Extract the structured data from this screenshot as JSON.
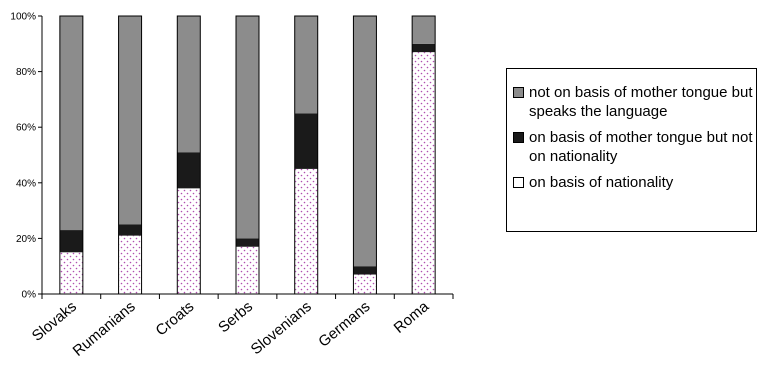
{
  "chart_data": {
    "type": "bar",
    "stacked": true,
    "categories": [
      "Slovaks",
      "Rumanians",
      "Croats",
      "Serbs",
      "Slovenians",
      "Germans",
      "Roma"
    ],
    "series": [
      {
        "name": "on basis of nationality",
        "color": "#ffffff",
        "pattern": "dotted",
        "values": [
          15,
          21,
          38,
          17,
          45,
          7,
          87
        ]
      },
      {
        "name": "on basis of mother tongue but not on nationality",
        "color": "#1a1a1a",
        "values": [
          8,
          4,
          13,
          3,
          20,
          3,
          3
        ]
      },
      {
        "name": "not on basis of mother tongue but speaks the language",
        "color": "#8c8c8c",
        "values": [
          77,
          75,
          49,
          80,
          35,
          90,
          10
        ]
      }
    ],
    "ylim": [
      0,
      100
    ],
    "yticks": [
      "0%",
      "20%",
      "40%",
      "60%",
      "80%",
      "100%"
    ],
    "legend_position": "right",
    "grid": false
  },
  "legend": {
    "items": [
      {
        "label": "not on basis of mother tongue but speaks the language",
        "swatch": "grey"
      },
      {
        "label": "on basis of mother tongue but not on nationality",
        "swatch": "black"
      },
      {
        "label": "on basis of nationality",
        "swatch": "dots"
      }
    ]
  }
}
